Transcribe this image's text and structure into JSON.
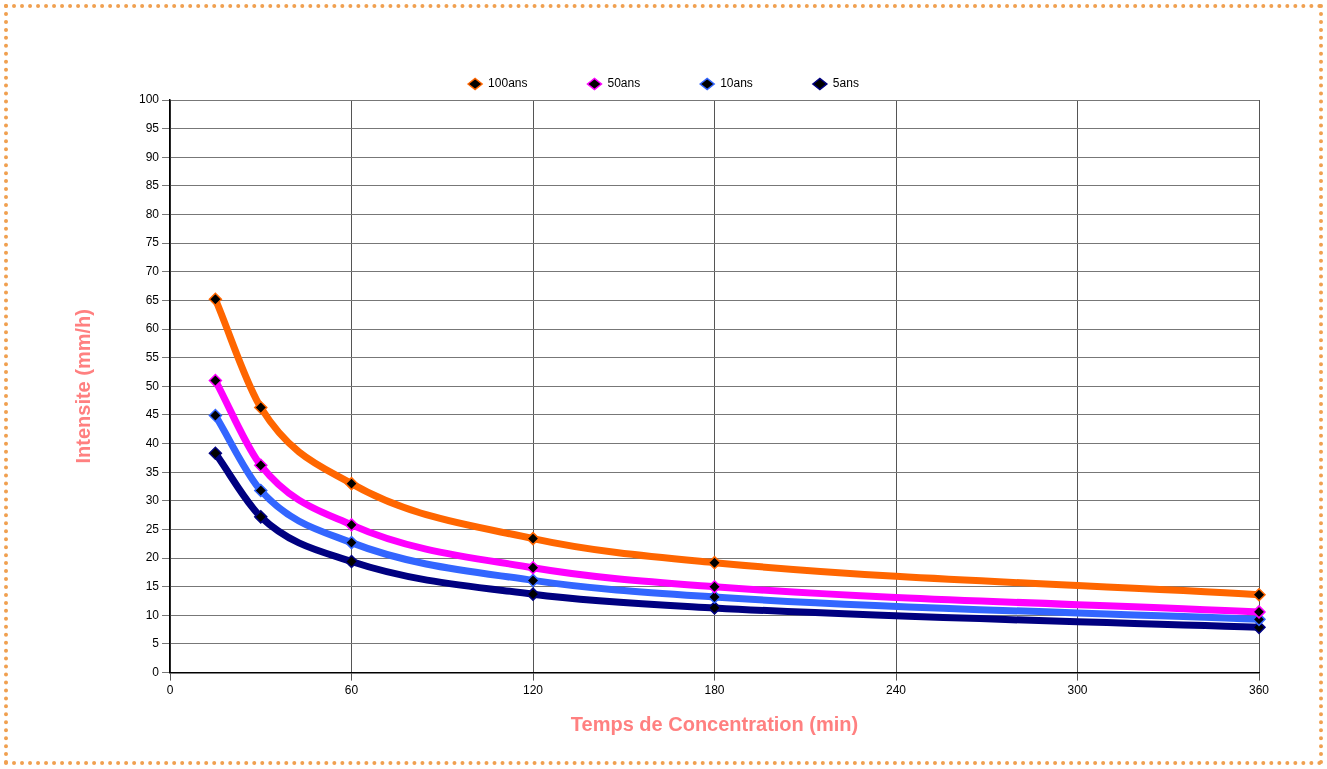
{
  "chart_data": {
    "type": "line",
    "xlabel": "Temps de Concentration (min)",
    "ylabel": "Intensite (mm/h)",
    "x": [
      15,
      30,
      60,
      120,
      180,
      360
    ],
    "series": [
      {
        "name": "100ans",
        "color": "#ff6600",
        "values": [
          65.2,
          46.3,
          33,
          23.4,
          19.2,
          13.6
        ]
      },
      {
        "name": "50ans",
        "color": "#ff00ff",
        "values": [
          51,
          36.2,
          25.8,
          18.3,
          15,
          10.6
        ]
      },
      {
        "name": "10ans",
        "color": "#3366ff",
        "values": [
          44.9,
          31.8,
          22.7,
          16.1,
          13.2,
          9.3
        ]
      },
      {
        "name": "5ans",
        "color": "#000080",
        "values": [
          38.3,
          27.2,
          19.4,
          13.7,
          11.3,
          7.9
        ]
      }
    ],
    "xlim": [
      0,
      360
    ],
    "xticks": [
      0,
      60,
      120,
      180,
      240,
      300,
      360
    ],
    "ylim": [
      0,
      100
    ],
    "yticks": [
      0,
      5,
      10,
      15,
      20,
      25,
      30,
      35,
      40,
      45,
      50,
      55,
      60,
      65,
      70,
      75,
      80,
      85,
      90,
      95,
      100
    ],
    "grid": true,
    "legend": "top",
    "marker": "diamond",
    "line_style": "solid"
  }
}
